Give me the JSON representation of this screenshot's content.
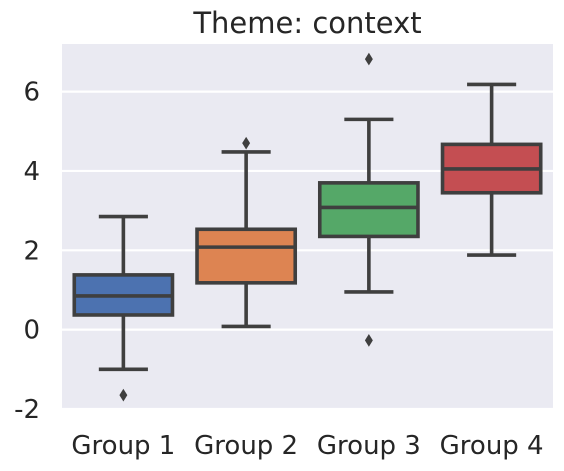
{
  "chart_data": {
    "type": "box",
    "title": "Theme: context",
    "xlabel": "",
    "ylabel": "",
    "ylim": [
      -2,
      7.2
    ],
    "yticks": [
      -2,
      0,
      2,
      4,
      6
    ],
    "ytick_labels": [
      "-2",
      "0",
      "2",
      "4",
      "6"
    ],
    "categories": [
      "Group 1",
      "Group 2",
      "Group 3",
      "Group 4"
    ],
    "grid": true,
    "background_color": "#eaeaf2",
    "grid_color": "#ffffff",
    "box_edge_color": "#3f3f3f",
    "boxes": [
      {
        "category": "Group 1",
        "color": "#4c72b0",
        "whisker_low": -1.0,
        "q1": 0.37,
        "median": 0.85,
        "q3": 1.38,
        "whisker_high": 2.85,
        "outliers": [
          -1.65
        ]
      },
      {
        "category": "Group 2",
        "color": "#dd8452",
        "whisker_low": 0.08,
        "q1": 1.18,
        "median": 2.08,
        "q3": 2.53,
        "whisker_high": 4.48,
        "outliers": [
          4.7
        ]
      },
      {
        "category": "Group 3",
        "color": "#55a868",
        "whisker_low": 0.95,
        "q1": 2.35,
        "median": 3.08,
        "q3": 3.7,
        "whisker_high": 5.3,
        "outliers": [
          -0.27,
          6.82
        ]
      },
      {
        "category": "Group 4",
        "color": "#c44e52",
        "whisker_low": 1.88,
        "q1": 3.45,
        "median": 4.05,
        "q3": 4.67,
        "whisker_high": 6.18,
        "outliers": []
      }
    ]
  }
}
